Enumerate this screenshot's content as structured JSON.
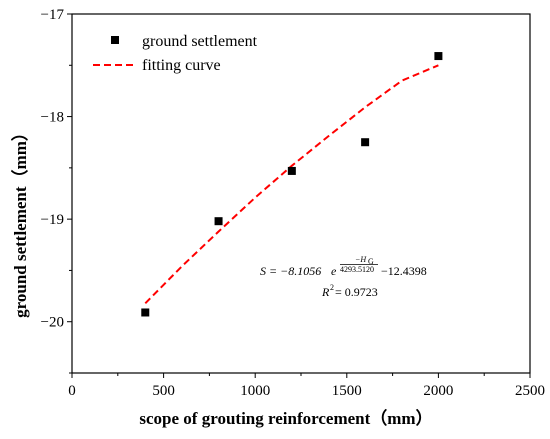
{
  "chart_data": {
    "type": "scatter",
    "xlabel": "scope of grouting reinforcement（mm）",
    "ylabel": "ground settlement（mm）",
    "xlim": [
      0,
      2500
    ],
    "ylim": [
      -20.5,
      -17
    ],
    "x_ticks": [
      0,
      500,
      1000,
      1500,
      2000,
      2500
    ],
    "y_ticks": [
      -20,
      -19,
      -18,
      -17
    ],
    "x_tick_labels": [
      "0",
      "500",
      "1000",
      "1500",
      "2000",
      "2500"
    ],
    "y_tick_labels": [
      "−20",
      "−19",
      "−18",
      "−17"
    ],
    "grid": false,
    "legend_position": "top-left",
    "series": [
      {
        "name": "ground settlement",
        "style": "square-markers",
        "color": "#000000",
        "x": [
          400,
          800,
          1200,
          1600,
          2000
        ],
        "y": [
          -19.91,
          -19.02,
          -18.53,
          -18.25,
          -17.41
        ]
      },
      {
        "name": "fitting curve",
        "style": "dashed-line",
        "color": "#ff0000",
        "x": [
          400,
          600,
          800,
          1000,
          1200,
          1400,
          1600,
          1800,
          2000
        ],
        "y": [
          -19.82,
          -19.46,
          -19.12,
          -18.79,
          -18.48,
          -18.19,
          -17.91,
          -17.65,
          -17.5
        ]
      }
    ],
    "annotation": {
      "lhs": "S = −8.1056",
      "base": "e",
      "exp_numerator": "−H",
      "exp_numerator_sub": "G",
      "exp_denominator": "4293.5120",
      "rhs": "−12.4398",
      "r2_symbol": "R",
      "r2_power": "2",
      "r2_value": " = 0.9723"
    }
  }
}
